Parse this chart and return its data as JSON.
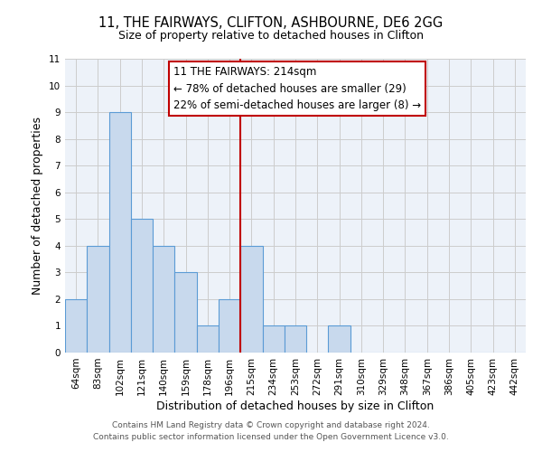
{
  "title": "11, THE FAIRWAYS, CLIFTON, ASHBOURNE, DE6 2GG",
  "subtitle": "Size of property relative to detached houses in Clifton",
  "xlabel": "Distribution of detached houses by size in Clifton",
  "ylabel": "Number of detached properties",
  "footer_line1": "Contains HM Land Registry data © Crown copyright and database right 2024.",
  "footer_line2": "Contains public sector information licensed under the Open Government Licence v3.0.",
  "bin_labels": [
    "64sqm",
    "83sqm",
    "102sqm",
    "121sqm",
    "140sqm",
    "159sqm",
    "178sqm",
    "196sqm",
    "215sqm",
    "234sqm",
    "253sqm",
    "272sqm",
    "291sqm",
    "310sqm",
    "329sqm",
    "348sqm",
    "367sqm",
    "386sqm",
    "405sqm",
    "423sqm",
    "442sqm"
  ],
  "bar_heights": [
    2,
    4,
    9,
    5,
    4,
    3,
    1,
    2,
    4,
    1,
    1,
    0,
    1,
    0,
    0,
    0,
    0,
    0,
    0,
    0,
    0
  ],
  "bar_color": "#c8d9ed",
  "bar_edgecolor": "#5b9bd5",
  "highlight_index": 8,
  "highlight_color": "#c00000",
  "ylim": [
    0,
    11
  ],
  "yticks": [
    0,
    1,
    2,
    3,
    4,
    5,
    6,
    7,
    8,
    9,
    10,
    11
  ],
  "annotation_title": "11 THE FAIRWAYS: 214sqm",
  "annotation_line1": "← 78% of detached houses are smaller (29)",
  "annotation_line2": "22% of semi-detached houses are larger (8) →",
  "grid_color": "#cccccc",
  "background_color": "#edf2f9",
  "title_fontsize": 10.5,
  "subtitle_fontsize": 9,
  "axis_label_fontsize": 9,
  "tick_fontsize": 7.5,
  "annotation_fontsize": 8.5,
  "footer_fontsize": 6.5,
  "footer_color": "#555555"
}
